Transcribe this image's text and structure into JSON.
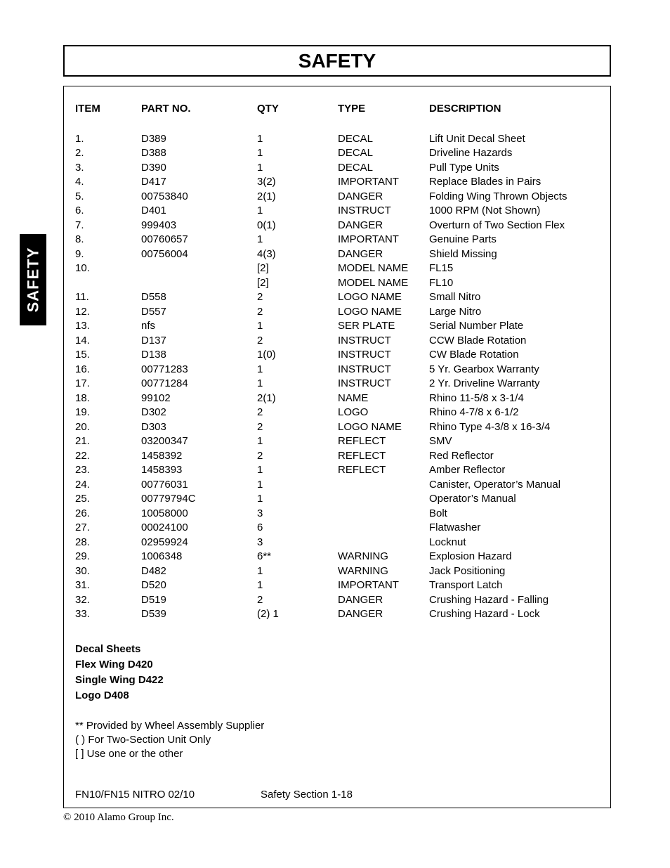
{
  "page": {
    "title": "SAFETY",
    "side_tab": "SAFETY",
    "copyright": "© 2010 Alamo Group Inc."
  },
  "headers": {
    "item": "ITEM",
    "part": "PART NO.",
    "qty": "QTY",
    "type": "TYPE",
    "desc": "DESCRIPTION"
  },
  "rows": [
    {
      "item": "1.",
      "part": "D389",
      "qty": "1",
      "type": "DECAL",
      "desc": "Lift Unit Decal Sheet"
    },
    {
      "item": "2.",
      "part": "D388",
      "qty": "1",
      "type": "DECAL",
      "desc": "Driveline Hazards"
    },
    {
      "item": "3.",
      "part": "D390",
      "qty": "1",
      "type": "DECAL",
      "desc": "Pull Type Units"
    },
    {
      "item": "4.",
      "part": "D417",
      "qty": "3(2)",
      "type": "IMPORTANT",
      "desc": "Replace Blades in Pairs"
    },
    {
      "item": "5.",
      "part": "00753840",
      "qty": "2(1)",
      "type": "DANGER",
      "desc": "Folding Wing Thrown Objects"
    },
    {
      "item": "6.",
      "part": "D401",
      "qty": "1",
      "type": "INSTRUCT",
      "desc": "1000 RPM (Not Shown)"
    },
    {
      "item": "7.",
      "part": "999403",
      "qty": "0(1)",
      "type": "DANGER",
      "desc": "Overturn of Two Section Flex"
    },
    {
      "item": "8.",
      "part": "00760657",
      "qty": "1",
      "type": "IMPORTANT",
      "desc": "Genuine Parts"
    },
    {
      "item": "9.",
      "part": "00756004",
      "qty": "4(3)",
      "type": "DANGER",
      "desc": "Shield Missing"
    },
    {
      "item": "10.",
      "part": "",
      "qty": "[2]",
      "type": "MODEL NAME",
      "desc": "FL15"
    },
    {
      "item": "",
      "part": "",
      "qty": "[2]",
      "type": "MODEL NAME",
      "desc": "FL10"
    },
    {
      "item": "11.",
      "part": "D558",
      "qty": "2",
      "type": "LOGO NAME",
      "desc": "Small Nitro"
    },
    {
      "item": "12.",
      "part": "D557",
      "qty": "2",
      "type": "LOGO NAME",
      "desc": "Large Nitro"
    },
    {
      "item": "13.",
      "part": "nfs",
      "qty": "1",
      "type": "SER PLATE",
      "desc": "Serial Number Plate"
    },
    {
      "item": "14.",
      "part": "D137",
      "qty": "2",
      "type": "INSTRUCT",
      "desc": "CCW Blade Rotation"
    },
    {
      "item": "15.",
      "part": "D138",
      "qty": "1(0)",
      "type": "INSTRUCT",
      "desc": "CW Blade Rotation"
    },
    {
      "item": "16.",
      "part": "00771283",
      "qty": "1",
      "type": "INSTRUCT",
      "desc": "5 Yr. Gearbox Warranty"
    },
    {
      "item": "17.",
      "part": "00771284",
      "qty": "1",
      "type": "INSTRUCT",
      "desc": "2 Yr. Driveline Warranty"
    },
    {
      "item": "18.",
      "part": "99102",
      "qty": "2(1)",
      "type": "NAME",
      "desc": "Rhino 11-5/8 x 3-1/4"
    },
    {
      "item": "19.",
      "part": "D302",
      "qty": "2",
      "type": "LOGO",
      "desc": "Rhino 4-7/8 x 6-1/2"
    },
    {
      "item": "20.",
      "part": "D303",
      "qty": "2",
      "type": "LOGO NAME",
      "desc": "Rhino Type 4-3/8 x 16-3/4"
    },
    {
      "item": "21.",
      "part": "03200347",
      "qty": "1",
      "type": "REFLECT",
      "desc": "SMV"
    },
    {
      "item": "22.",
      "part": "1458392",
      "qty": "2",
      "type": "REFLECT",
      "desc": "Red Reflector"
    },
    {
      "item": "23.",
      "part": "1458393",
      "qty": "1",
      "type": "REFLECT",
      "desc": "Amber Reflector"
    },
    {
      "item": "24.",
      "part": "00776031",
      "qty": "1",
      "type": "",
      "desc": "Canister, Operator’s Manual"
    },
    {
      "item": "25.",
      "part": "00779794C",
      "qty": "1",
      "type": "",
      "desc": "Operator’s Manual"
    },
    {
      "item": "26.",
      "part": "10058000",
      "qty": "3",
      "type": "",
      "desc": "Bolt"
    },
    {
      "item": "27.",
      "part": "00024100",
      "qty": "6",
      "type": "",
      "desc": "Flatwasher"
    },
    {
      "item": "28.",
      "part": "02959924",
      "qty": "3",
      "type": "",
      "desc": "Locknut"
    },
    {
      "item": "29.",
      "part": "1006348",
      "qty": "6**",
      "type": "WARNING",
      "desc": "Explosion Hazard"
    },
    {
      "item": "30.",
      "part": "D482",
      "qty": "1",
      "type": "WARNING",
      "desc": "Jack Positioning"
    },
    {
      "item": "31.",
      "part": "D520",
      "qty": "1",
      "type": "IMPORTANT",
      "desc": "Transport Latch"
    },
    {
      "item": "32.",
      "part": "D519",
      "qty": "2",
      "type": "DANGER",
      "desc": "Crushing Hazard - Falling"
    },
    {
      "item": "33.",
      "part": "D539",
      "qty": "(2) 1",
      "type": "DANGER",
      "desc": "Crushing Hazard - Lock"
    }
  ],
  "decal_sheets": {
    "heading": "Decal Sheets",
    "lines": [
      "Flex Wing   D420",
      "Single Wing D422",
      "Logo D408"
    ]
  },
  "notes": [
    "** Provided by Wheel Assembly Supplier",
    "( ) For Two-Section Unit Only",
    "[ ] Use one or the other"
  ],
  "footer": {
    "left": "FN10/FN15 NITRO 02/10",
    "center": "Safety Section 1-18"
  }
}
